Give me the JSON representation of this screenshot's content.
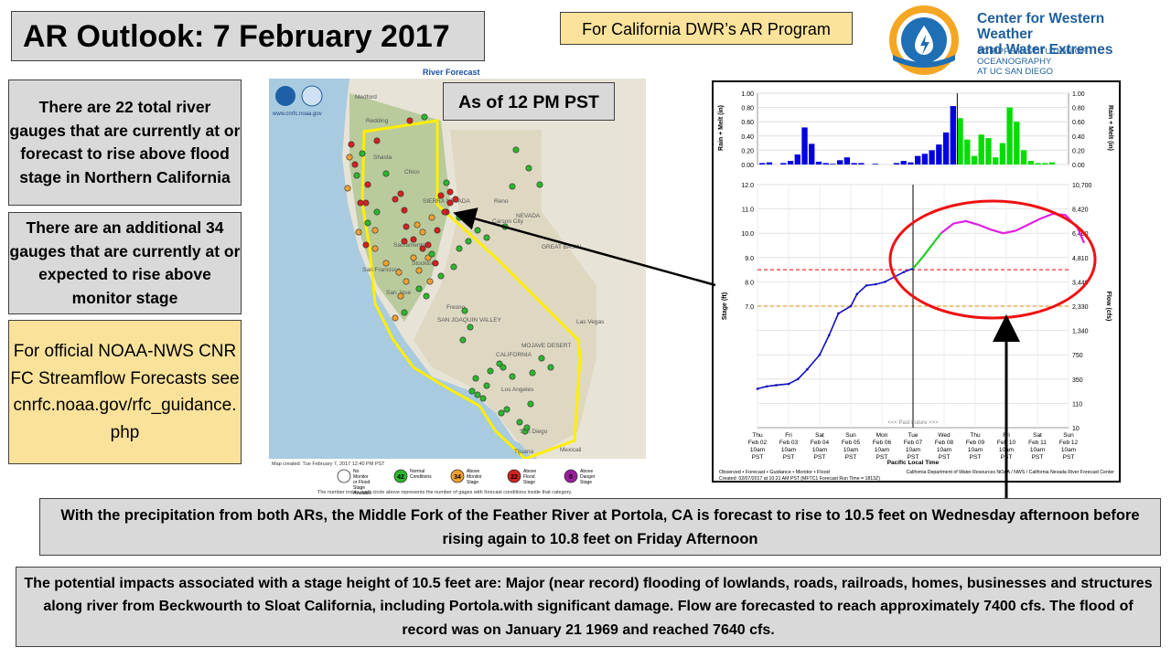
{
  "title": "AR Outlook: 7 February 2017",
  "program_label": "For California DWR’s AR Program",
  "cw3e": {
    "name_line1": "Center for Western Weather",
    "name_line2": "and Water Extremes",
    "institution_line1": "SCRIPPS INSTITUTION OF OCEANOGRAPHY",
    "institution_line2": "AT UC SAN DIEGO",
    "logo_color": "#1f6fb5",
    "logo_accent": "#f5a623"
  },
  "stats": {
    "flood_stage_text": "There are 22 total river gauges that are currently at or forecast to rise above flood stage in Northern California",
    "monitor_stage_text": "There are an additional  34 gauges that are currently at or expected to rise above monitor stage"
  },
  "official_text": "For official NOAA-NWS CNRFC Streamflow Forecasts see cnrfc.noaa.gov/rfc_guidance.php",
  "map": {
    "title": "River Forecast",
    "noaa_url": "www.cnrfc.noaa.gov",
    "as_of_label": "As of 12 PM PST",
    "created_text": "Map created: Tue February 7, 2017 12:40 PM PST",
    "footnote": "The number inside each circle above represents the number of gages with forecast conditions inside that category.",
    "place_labels": [
      "Redding",
      "Chico",
      "Shasta",
      "Reno",
      "Carson City",
      "NEVADA",
      "Sacramento",
      "San Francisco",
      "Stockton",
      "San Jose",
      "Fresno",
      "SIERRA NEVADA",
      "SAN JOAQUIN VALLEY",
      "GREAT BASIN",
      "Las Vegas",
      "CALIFORNIA",
      "MOJAVE DESERT",
      "Los Angeles",
      "San Diego",
      "Tijuana",
      "Mexicali",
      "Medford"
    ],
    "legend": [
      {
        "label": "No Monitor or Flood Stage Available",
        "count": "",
        "color": "#ffffff"
      },
      {
        "label": "Normal Conditions",
        "count": "42",
        "color": "#2db52d"
      },
      {
        "label": "Above Monitor Stage",
        "count": "34",
        "color": "#f0a030"
      },
      {
        "label": "Above Flood Stage",
        "count": "22",
        "color": "#d42020"
      },
      {
        "label": "Above Danger Stage",
        "count": "0",
        "color": "#9b1b9b"
      }
    ]
  },
  "chart_data": [
    {
      "type": "bar",
      "title": "",
      "ylabel": "Rain + Melt (in)",
      "ylim": [
        0,
        1.0
      ],
      "yticks": [
        "1.00",
        "0.80",
        "0.60",
        "0.40",
        "0.20",
        "0.00"
      ],
      "series": [
        {
          "name": "Observed",
          "color": "#0000e0",
          "values": [
            0.02,
            0.03,
            0.0,
            0.02,
            0.05,
            0.14,
            0.52,
            0.29,
            0.04,
            0.02,
            0.01,
            0.06,
            0.1,
            0.02,
            0.02,
            0.0,
            0.01,
            0.0,
            0.0,
            0.02,
            0.05,
            0.03,
            0.12,
            0.15,
            0.2,
            0.28,
            0.45,
            0.82
          ]
        },
        {
          "name": "Guidance",
          "color": "#00dd00",
          "values": [
            0.65,
            0.35,
            0.12,
            0.42,
            0.37,
            0.1,
            0.3,
            0.8,
            0.6,
            0.2,
            0.05,
            0.02,
            0.02,
            0.03,
            0.0
          ]
        }
      ]
    },
    {
      "type": "line",
      "title": "",
      "ylabel": "Stage (ft)",
      "y2label": "Flow (cfs)",
      "xlabel": "Pacific Local Time",
      "ylim": [
        6.0,
        12.0
      ],
      "yticks": [
        "12.0",
        "11.0",
        "10.0",
        "9.0",
        "8.0",
        "7.0"
      ],
      "y2ticks": [
        "10,700",
        "8,420",
        "6,460",
        "4,810",
        "3,440",
        "2,330",
        "1,340",
        "750",
        "350",
        "110",
        "10"
      ],
      "categories": [
        "Thu Feb 02 10am PST",
        "Fri Feb 03 10am PST",
        "Sat Feb 04 10am PST",
        "Sun Feb 05 10am PST",
        "Mon Feb 06 10am PST",
        "Tue Feb 07 10am PST",
        "Wed Feb 08 10am PST",
        "Thu Feb 09 10am PST",
        "Fri Feb 10 10am PST",
        "Sat Feb 11 10am PST",
        "Sun Feb 12 10am PST"
      ],
      "flood_stage": 8.5,
      "monitor_stage": 7.0,
      "past_future_label": "<<< Past   Future >>>",
      "series": [
        {
          "name": "Observed",
          "color": "#1010c0",
          "x": [
            0,
            0.3,
            0.6,
            1.0,
            1.3,
            1.6,
            2.0,
            2.3,
            2.6,
            3.0,
            3.2,
            3.5,
            3.8,
            4.1,
            4.4,
            4.7,
            5.0
          ],
          "y": [
            3.6,
            3.7,
            3.75,
            3.8,
            4.0,
            4.4,
            5.0,
            5.8,
            6.7,
            7.0,
            7.5,
            7.85,
            7.9,
            8.0,
            8.2,
            8.4,
            8.55
          ]
        },
        {
          "name": "Guidance",
          "color": "#22cc22",
          "x": [
            5.0,
            5.3,
            5.6,
            5.9
          ],
          "y": [
            8.55,
            9.0,
            9.5,
            10.0
          ]
        },
        {
          "name": "Monitor",
          "color": "#e020e0",
          "x": [
            5.9,
            6.3,
            6.7,
            7.1,
            7.5,
            7.9,
            8.3,
            8.7,
            9.1,
            9.5,
            9.9,
            10.3,
            10.5
          ],
          "y": [
            10.0,
            10.4,
            10.5,
            10.35,
            10.15,
            10.0,
            10.1,
            10.35,
            10.6,
            10.8,
            10.75,
            10.2,
            9.6
          ]
        }
      ],
      "legend_text": "Observed  •  Forecast  •  Guidance  •  Monitor  •  Flood",
      "footer_left": "Created: 02/07/2017 at 10:21 AM PST   (MFTC1 Forecast Run Time = 1813Z)",
      "footer_right": "California Department of Water Resources  NOAA / NWS / California Nevada River Forecast Center"
    }
  ],
  "as_of_label": "As of 12 PM PST",
  "forecast_text": "With the precipitation  from both ARs, the Middle Fork of the Feather River at Portola, CA is forecast to rise to 10.5 feet on Wednesday afternoon before rising again to 10.8 feet on Friday Afternoon",
  "impacts_text": "The potential impacts associated with a stage height of 10.5 feet are: Major (near record) flooding of lowlands, roads, railroads, homes, businesses and structures along river from Beckwourth to Sloat California, including Portola.with significant damage. Flow are forecasted to reach approximately 7400 cfs. The flood of record was on January 21 1969  and reached 7640 cfs."
}
